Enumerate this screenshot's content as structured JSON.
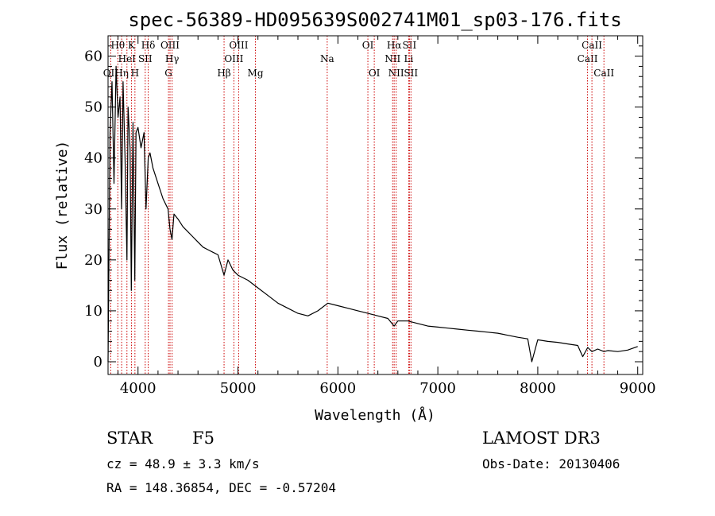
{
  "chart_data": {
    "type": "line",
    "title": "spec-56389-HD095639S002741M01_sp03-176.fits",
    "xlabel": "Wavelength (Å)",
    "ylabel": "Flux (relative)",
    "xlim": [
      3700,
      9050
    ],
    "ylim": [
      -2.5,
      64
    ],
    "x_ticks": [
      4000,
      5000,
      6000,
      7000,
      8000,
      9000
    ],
    "y_ticks": [
      0,
      10,
      20,
      30,
      40,
      50,
      60
    ],
    "grid": false,
    "series": [
      {
        "x": [
          3700,
          3720,
          3740,
          3760,
          3780,
          3800,
          3820,
          3835,
          3850,
          3870,
          3889,
          3900,
          3920,
          3933,
          3950,
          3968,
          3980,
          4000,
          4030,
          4060,
          4080,
          4102,
          4120,
          4150,
          4200,
          4250,
          4300,
          4320,
          4340,
          4360,
          4400,
          4450,
          4500,
          4550,
          4600,
          4650,
          4700,
          4750,
          4800,
          4861,
          4900,
          4950,
          5000,
          5100,
          5200,
          5300,
          5400,
          5500,
          5600,
          5700,
          5800,
          5900,
          6000,
          6100,
          6200,
          6300,
          6400,
          6500,
          6563,
          6600,
          6700,
          6800,
          6900,
          7000,
          7100,
          7200,
          7300,
          7400,
          7500,
          7600,
          7700,
          7800,
          7900,
          7940,
          8000,
          8100,
          8200,
          8300,
          8400,
          8450,
          8500,
          8542,
          8600,
          8662,
          8700,
          8800,
          8900,
          9000
        ],
        "y": [
          0,
          45,
          55,
          35,
          58,
          48,
          52,
          30,
          55,
          40,
          20,
          50,
          42,
          14,
          47,
          16,
          45,
          46,
          42,
          45,
          30,
          40,
          41,
          38,
          35,
          32,
          30,
          26,
          24,
          29,
          28,
          26.5,
          25.5,
          24.5,
          23.5,
          22.5,
          22,
          21.5,
          21,
          17,
          20,
          18,
          17,
          16,
          14.5,
          13,
          11.5,
          10.5,
          9.5,
          9,
          10,
          11.5,
          11,
          10.5,
          10,
          9.5,
          9,
          8.5,
          7,
          8,
          8,
          7.5,
          7,
          6.8,
          6.6,
          6.4,
          6.2,
          6,
          5.8,
          5.6,
          5.2,
          4.8,
          4.5,
          0,
          4.3,
          4,
          3.8,
          3.5,
          3.2,
          1,
          2.8,
          2,
          2.5,
          2,
          2.2,
          2,
          2.3,
          3
        ]
      }
    ],
    "lines": [
      {
        "label": "OII",
        "x": 3727,
        "row": 2
      },
      {
        "label": "Hθ",
        "x": 3798,
        "row": 0
      },
      {
        "label": "Hη",
        "x": 3836,
        "row": 2
      },
      {
        "label": "HeI",
        "x": 3889,
        "row": 1
      },
      {
        "label": "K",
        "x": 3934,
        "row": 0
      },
      {
        "label": "H",
        "x": 3969,
        "row": 2
      },
      {
        "label": "Hδ",
        "x": 4102,
        "row": 0
      },
      {
        "label": "SII",
        "x": 4072,
        "row": 1
      },
      {
        "label": "G",
        "x": 4305,
        "row": 2
      },
      {
        "label": "OIII",
        "x": 4320,
        "row": 0
      },
      {
        "label": "Hγ",
        "x": 4341,
        "row": 1
      },
      {
        "label": "Hβ",
        "x": 4861,
        "row": 2
      },
      {
        "label": "OIII",
        "x": 4959,
        "row": 1
      },
      {
        "label": "OIII",
        "x": 5007,
        "row": 0
      },
      {
        "label": "Mg",
        "x": 5175,
        "row": 2
      },
      {
        "label": "Na",
        "x": 5893,
        "row": 1
      },
      {
        "label": "OI",
        "x": 6300,
        "row": 0
      },
      {
        "label": "OI",
        "x": 6364,
        "row": 2
      },
      {
        "label": "NII",
        "x": 6548,
        "row": 1
      },
      {
        "label": "NII",
        "x": 6583,
        "row": 2
      },
      {
        "label": "Hα",
        "x": 6563,
        "row": 0
      },
      {
        "label": "SII",
        "x": 6716,
        "row": 0
      },
      {
        "label": "Li",
        "x": 6708,
        "row": 1
      },
      {
        "label": "SII",
        "x": 6731,
        "row": 2
      },
      {
        "label": "CaII",
        "x": 8498,
        "row": 1
      },
      {
        "label": "CaII",
        "x": 8542,
        "row": 0
      },
      {
        "label": "CaII",
        "x": 8662,
        "row": 2
      }
    ]
  },
  "info": {
    "object_class": "STAR",
    "subclass": "F5",
    "survey": "LAMOST DR3",
    "cz": "cz = 48.9 ± 3.3 km/s",
    "obs_date": "Obs-Date: 20130406",
    "coords": "RA = 148.36854, DEC =  -0.57204"
  },
  "colors": {
    "spectrum": "#000000",
    "line_markers": "#cc0000"
  }
}
